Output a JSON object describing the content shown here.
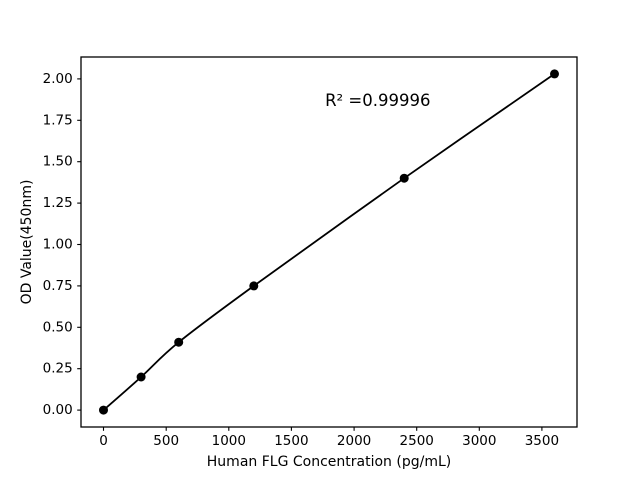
{
  "figure": {
    "background_color": "#ffffff",
    "foreground_color": "#000000"
  },
  "chart_data": {
    "type": "scatter",
    "title": "",
    "xlabel": "Human FLG Concentration (pg/mL)",
    "ylabel": "OD Value(450nm)",
    "x": [
      0,
      300,
      600,
      1200,
      2400,
      3600
    ],
    "y": [
      0.0,
      0.2,
      0.41,
      0.75,
      1.4,
      2.03
    ],
    "x_ticks": [
      0,
      500,
      1000,
      1500,
      2000,
      2500,
      3000,
      3500
    ],
    "x_tick_labels": [
      "0",
      "500",
      "1000",
      "1500",
      "2000",
      "2500",
      "3000",
      "3500"
    ],
    "y_ticks": [
      0.0,
      0.25,
      0.5,
      0.75,
      1.0,
      1.25,
      1.5,
      1.75,
      2.0
    ],
    "y_tick_labels": [
      "0.00",
      "0.25",
      "0.50",
      "0.75",
      "1.00",
      "1.25",
      "1.50",
      "1.75",
      "2.00"
    ],
    "xlim": [
      -180,
      3780
    ],
    "ylim": [
      -0.102,
      2.132
    ],
    "grid": false,
    "legend": null,
    "line": {
      "color": "#000000",
      "width": 1.8,
      "style": "solid",
      "smooth": true
    },
    "marker": {
      "shape": "circle",
      "color": "#000000",
      "radius": 4.5
    },
    "annotation": {
      "text": "R² =0.99996",
      "x": 2190,
      "y": 1.87
    }
  }
}
